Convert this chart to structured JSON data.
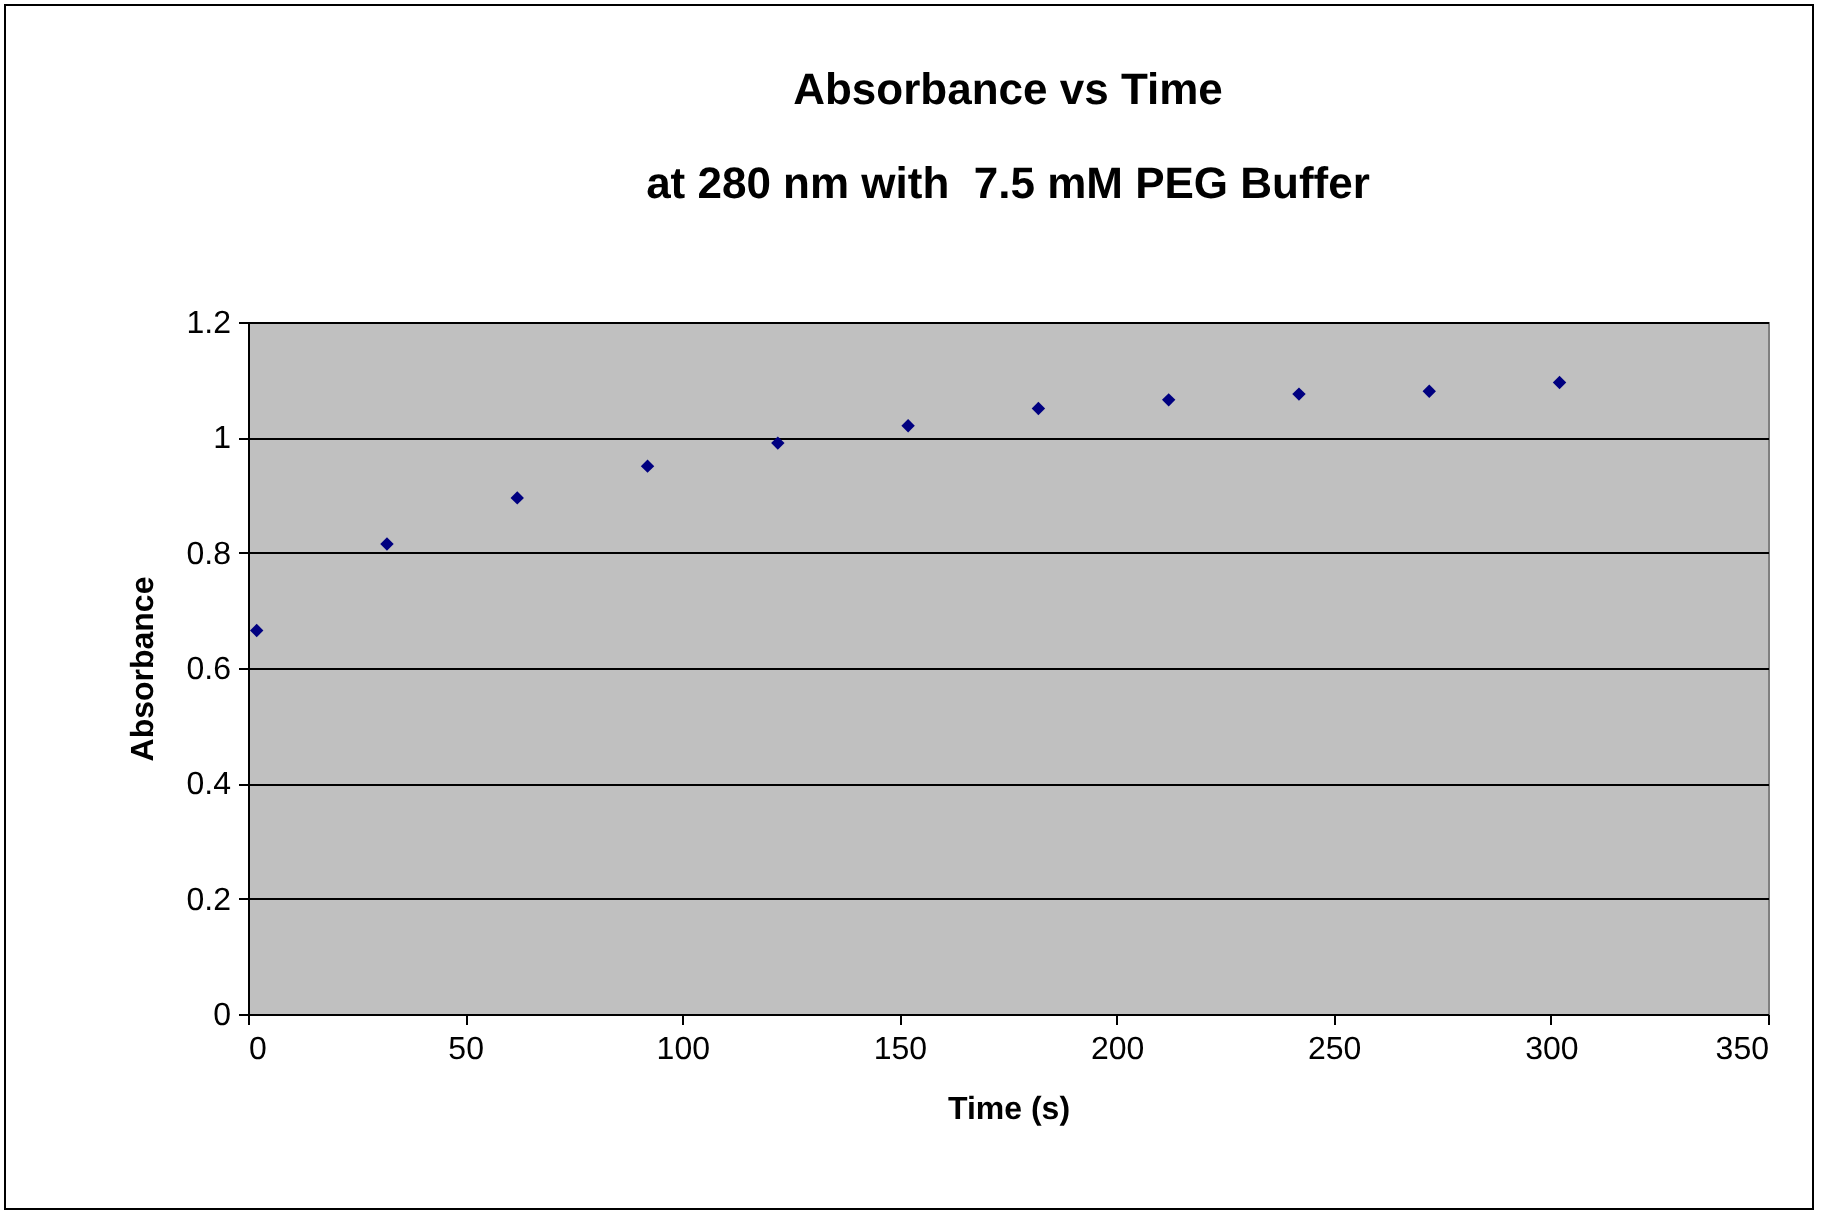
{
  "chart_data": {
    "type": "scatter",
    "title": "Absorbance vs Time\nat 280 nm with  7.5 mM PEG Buffer",
    "xlabel": "Time (s)",
    "ylabel": "Absorbance",
    "x": [
      2,
      32,
      62,
      92,
      122,
      152,
      182,
      212,
      242,
      272,
      302
    ],
    "series": [
      {
        "color": "#000080",
        "values": [
          0.665,
          0.815,
          0.895,
          0.95,
          0.99,
          1.02,
          1.05,
          1.065,
          1.075,
          1.08,
          1.095
        ]
      }
    ],
    "xlim": [
      0,
      350
    ],
    "xticks": [
      0,
      50,
      100,
      150,
      200,
      250,
      300,
      350
    ],
    "ylim": [
      0,
      1.2
    ],
    "yticks": [
      0,
      0.2,
      0.4,
      0.6,
      0.8,
      1,
      1.2
    ],
    "grid": "y",
    "marker": "diamond"
  }
}
